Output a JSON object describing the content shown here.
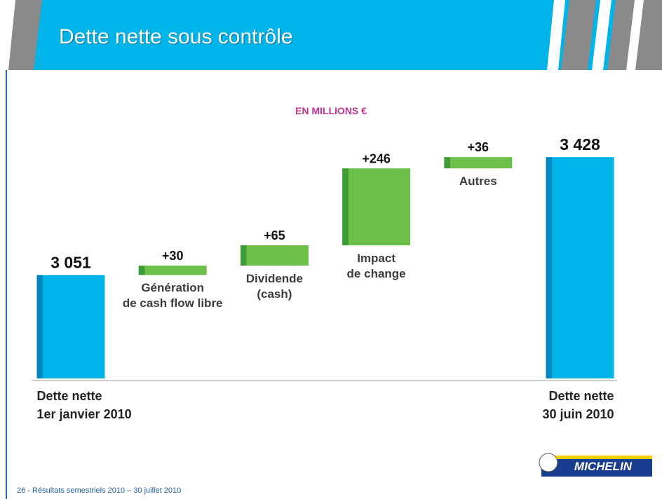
{
  "chart_data": {
    "type": "waterfall",
    "title": "Dette nette sous contrôle",
    "subtitle": "EN MILLIONS €",
    "categories": [
      "Dette nette\n1er janvier 2010",
      "Génération\nde cash flow libre",
      "Dividende\n(cash)",
      "Impact\nde change",
      "Autres",
      "Dette nette\n30 juin 2010"
    ],
    "values": [
      3051,
      30,
      65,
      246,
      36,
      3428
    ],
    "value_labels": [
      "3 051",
      "+30",
      "+65",
      "+246",
      "+36",
      "3 428"
    ],
    "measure": [
      "absolute",
      "relative",
      "relative",
      "relative",
      "relative",
      "total"
    ],
    "colors": {
      "total": "#00b4ea",
      "relative": "#6cc04a"
    },
    "ylim": [
      2720,
      3480
    ]
  },
  "footer": "26 - Résultats semestriels 2010 – 30 juillet 2010",
  "logo": "MICHELIN"
}
